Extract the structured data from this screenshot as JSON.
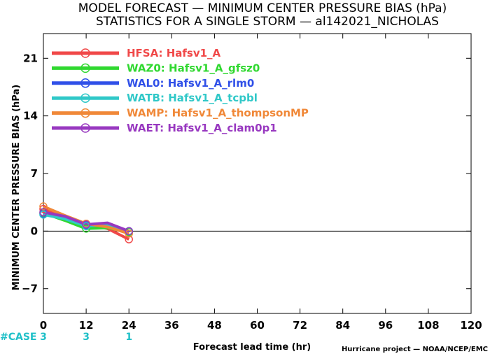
{
  "title_line1": "MODEL FORECAST — MINIMUM CENTER PRESSURE BIAS (hPa)",
  "title_line2": "STATISTICS FOR A SINGLE STORM — al142021_NICHOLAS",
  "credit": "Hurricane project — NOAA/NCEP/EMC",
  "case_label": "#CASE",
  "chart_data": {
    "type": "line",
    "xlabel": "Forecast lead time (hr)",
    "ylabel": "MINIMUM CENTER PRESSURE BIAS (hPa)",
    "xlim": [
      0,
      120
    ],
    "ylim": [
      -10,
      24
    ],
    "xticks": [
      0,
      12,
      24,
      36,
      48,
      60,
      72,
      84,
      96,
      108,
      120
    ],
    "yticks": [
      -7,
      0,
      7,
      14,
      21
    ],
    "zero_line": true,
    "legend_position": "top-left",
    "cases": [
      {
        "x": 0,
        "n": "3"
      },
      {
        "x": 12,
        "n": "3"
      },
      {
        "x": 24,
        "n": "1"
      }
    ],
    "series": [
      {
        "id": "HFSA",
        "name": "Hafsv1_A",
        "color": "#f04848",
        "points": [
          [
            0,
            2.7
          ],
          [
            6,
            1.8
          ],
          [
            12,
            0.9
          ],
          [
            18,
            0.3
          ],
          [
            24,
            -1.0
          ]
        ]
      },
      {
        "id": "WAZ0",
        "name": "Hafsv1_A_gfsz0",
        "color": "#30d830",
        "points": [
          [
            0,
            2.2
          ],
          [
            6,
            1.3
          ],
          [
            12,
            0.3
          ],
          [
            18,
            0.4
          ],
          [
            24,
            -0.1
          ]
        ]
      },
      {
        "id": "WAL0",
        "name": "Hafsv1_A_rlm0",
        "color": "#3050e8",
        "points": [
          [
            0,
            2.1
          ],
          [
            6,
            1.6
          ],
          [
            12,
            0.7
          ],
          [
            18,
            0.9
          ],
          [
            24,
            0.0
          ]
        ]
      },
      {
        "id": "WATB",
        "name": "Hafsv1_A_tcpbl",
        "color": "#30c8c8",
        "points": [
          [
            0,
            2.0
          ],
          [
            6,
            1.5
          ],
          [
            12,
            0.6
          ],
          [
            18,
            0.8
          ],
          [
            24,
            0.0
          ]
        ]
      },
      {
        "id": "WAMP",
        "name": "Hafsv1_A_thompsonMP",
        "color": "#f08838",
        "points": [
          [
            0,
            3.0
          ],
          [
            6,
            1.9
          ],
          [
            12,
            0.9
          ],
          [
            18,
            0.5
          ],
          [
            24,
            -0.3
          ]
        ]
      },
      {
        "id": "WAET",
        "name": "Hafsv1_A_clam0p1",
        "color": "#9838c0",
        "points": [
          [
            0,
            2.3
          ],
          [
            6,
            1.8
          ],
          [
            12,
            0.8
          ],
          [
            18,
            1.0
          ],
          [
            24,
            0.0
          ]
        ]
      }
    ]
  }
}
